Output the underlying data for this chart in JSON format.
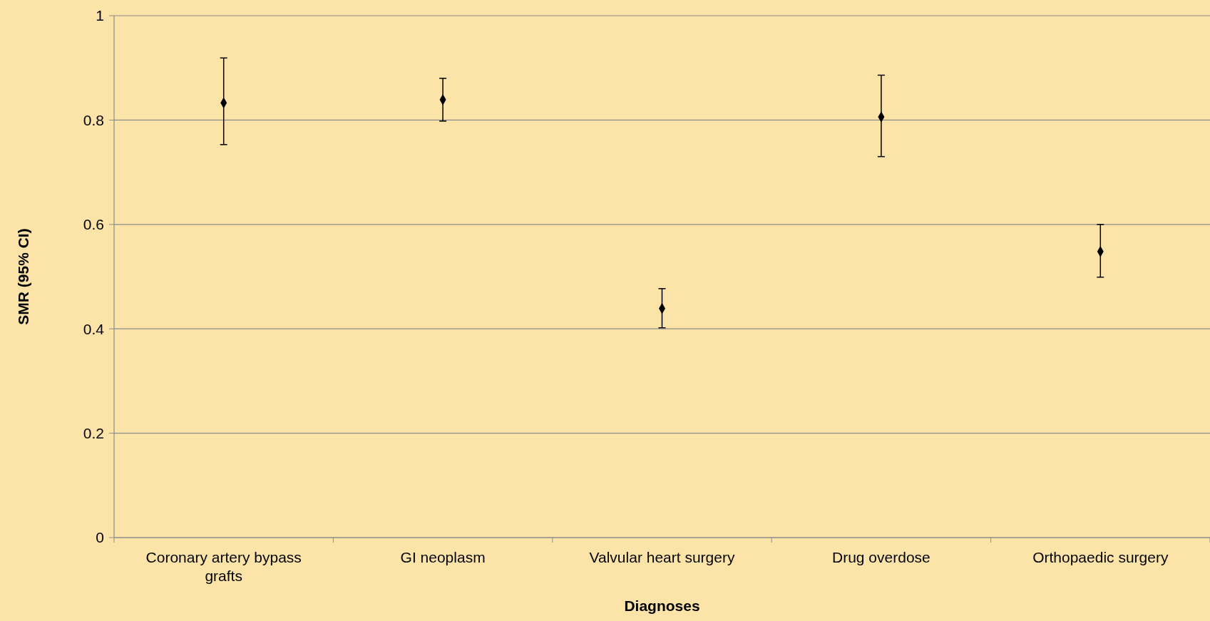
{
  "chart_data": {
    "type": "scatter",
    "xlabel": "Diagnoses",
    "ylabel": "SMR (95% CI)",
    "categories": [
      "Coronary artery bypass grafts",
      "GI neoplasm",
      "Valvular heart surgery",
      "Drug overdose",
      "Orthopaedic surgery"
    ],
    "series": [
      {
        "color": "#000000",
        "values": [
          0.833,
          0.839,
          0.439,
          0.806,
          0.548
        ],
        "errors": [
          [
            0.753,
            0.919
          ],
          [
            0.798,
            0.88
          ],
          [
            0.402,
            0.477
          ],
          [
            0.73,
            0.886
          ],
          [
            0.499,
            0.6
          ]
        ]
      }
    ],
    "ylim": [
      0,
      1
    ],
    "yticks": [
      0,
      0.2,
      0.4,
      0.6,
      0.8,
      1
    ],
    "grid": "y",
    "marker": "diamond"
  }
}
